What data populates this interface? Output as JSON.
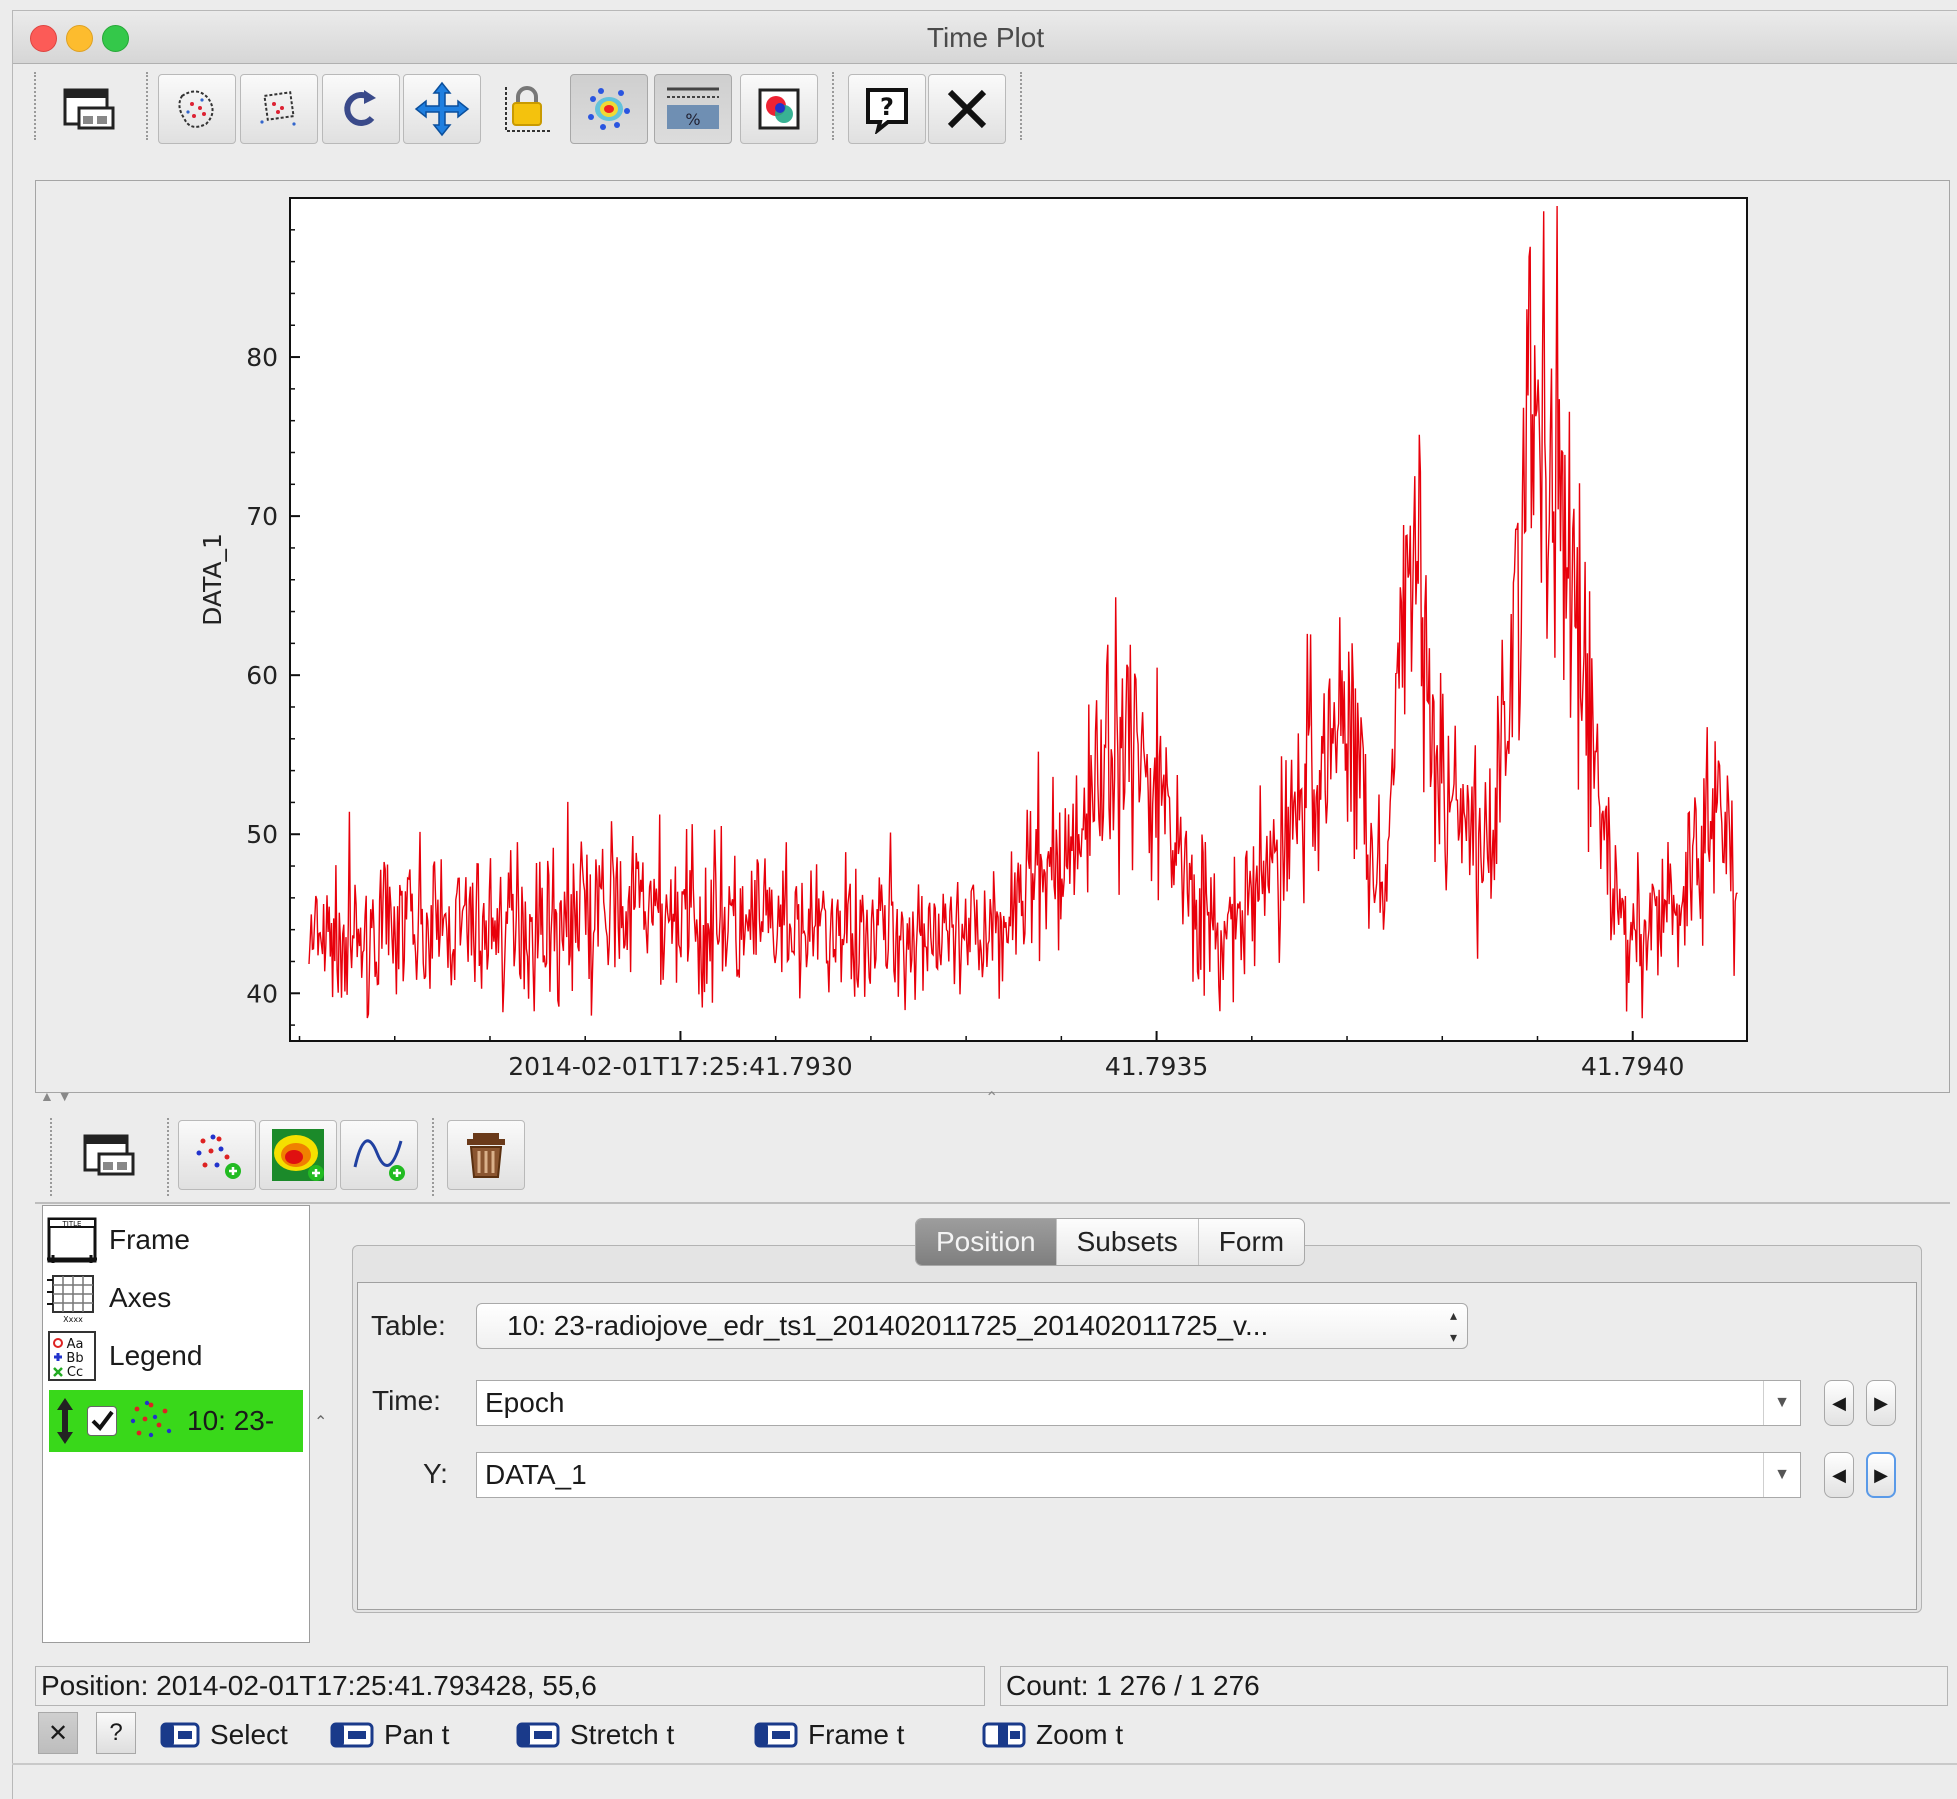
{
  "window": {
    "title": "Time Plot",
    "controls": [
      "close",
      "minimize",
      "zoom"
    ]
  },
  "main_toolbar": {
    "buttons": [
      {
        "name": "floating-window-icon"
      },
      {
        "name": "blob-subset-icon"
      },
      {
        "name": "box-subset-icon"
      },
      {
        "name": "replot-icon"
      },
      {
        "name": "rescale-icon"
      },
      {
        "name": "axis-lock-icon"
      },
      {
        "name": "sketch-density-icon"
      },
      {
        "name": "progress-bar-icon"
      },
      {
        "name": "export-image-icon"
      },
      {
        "name": "help-icon"
      },
      {
        "name": "close-window-icon"
      }
    ]
  },
  "layer_toolbar": {
    "buttons": [
      {
        "name": "floating-controls-icon"
      },
      {
        "name": "add-scatter-layer-icon"
      },
      {
        "name": "add-density-layer-icon"
      },
      {
        "name": "add-function-layer-icon"
      },
      {
        "name": "delete-layer-icon"
      }
    ]
  },
  "layer_list": {
    "fixed_items": [
      {
        "label": "Frame",
        "icon": "frame-icon"
      },
      {
        "label": "Axes",
        "icon": "axes-icon"
      },
      {
        "label": "Legend",
        "icon": "legend-icon"
      }
    ],
    "active_layer": {
      "label": "10: 23-",
      "checked": true,
      "highlight_color": "#39d81a"
    }
  },
  "tabs": [
    {
      "label": "Position",
      "active": true
    },
    {
      "label": "Subsets",
      "active": false
    },
    {
      "label": "Form",
      "active": false
    }
  ],
  "position_form": {
    "table_label": "Table:",
    "table_value": "10: 23-radiojove_edr_ts1_201402011725_201402011725_v...",
    "time_label": "Time:",
    "time_value": "Epoch",
    "y_label": "Y:",
    "y_value": "DATA_1"
  },
  "status": {
    "position": "Position: 2014-02-01T17:25:41.793428, 55,6",
    "count": "Count: 1 276 / 1 276"
  },
  "mouse_hints": [
    {
      "label": "Select",
      "icon": "mouse-left-icon"
    },
    {
      "label": "Pan t",
      "icon": "mouse-left-icon"
    },
    {
      "label": "Stretch t",
      "icon": "mouse-left-icon"
    },
    {
      "label": "Frame t",
      "icon": "mouse-left-icon"
    },
    {
      "label": "Zoom t",
      "icon": "mouse-wheel-icon"
    }
  ],
  "bottom_buttons": {
    "close": "✕",
    "help": "?"
  },
  "colors": {
    "series": "#e8000b",
    "highlight": "#39d81a",
    "active_tab": "#8a8a8a"
  },
  "chart_data": {
    "type": "line",
    "title": "",
    "xlabel": "",
    "ylabel": "DATA_1",
    "x_tick_labels": [
      "2014-02-01T17:25:41.7930",
      "41.7935",
      "41.7940"
    ],
    "x_tick_values_s": [
      41.793,
      41.7935,
      41.794
    ],
    "xlim_s": [
      41.79259,
      41.79412
    ],
    "y_tick_labels": [
      "40",
      "50",
      "60",
      "70",
      "80"
    ],
    "ylim": [
      37,
      90
    ],
    "grid": false,
    "legend": "none",
    "series": [
      {
        "x_s": [
          41.79261,
          41.7927,
          41.7928,
          41.7929,
          41.793,
          41.7931,
          41.7932,
          41.7933,
          41.7934,
          41.79347,
          41.7935,
          41.79353,
          41.79356,
          41.7936,
          41.79365,
          41.7937,
          41.79374,
          41.79377,
          41.7938,
          41.79385,
          41.7939,
          41.79395,
          41.79398,
          41.79401,
          41.79405,
          41.79409,
          41.79411
        ],
        "y": [
          43,
          44,
          44,
          45,
          45,
          44,
          44,
          43,
          48,
          57,
          53,
          48,
          43,
          45,
          52,
          58,
          45,
          72,
          52,
          48,
          78,
          60,
          45,
          44,
          46,
          52,
          45
        ],
        "color": "#e8000b",
        "noisy": true
      }
    ]
  }
}
